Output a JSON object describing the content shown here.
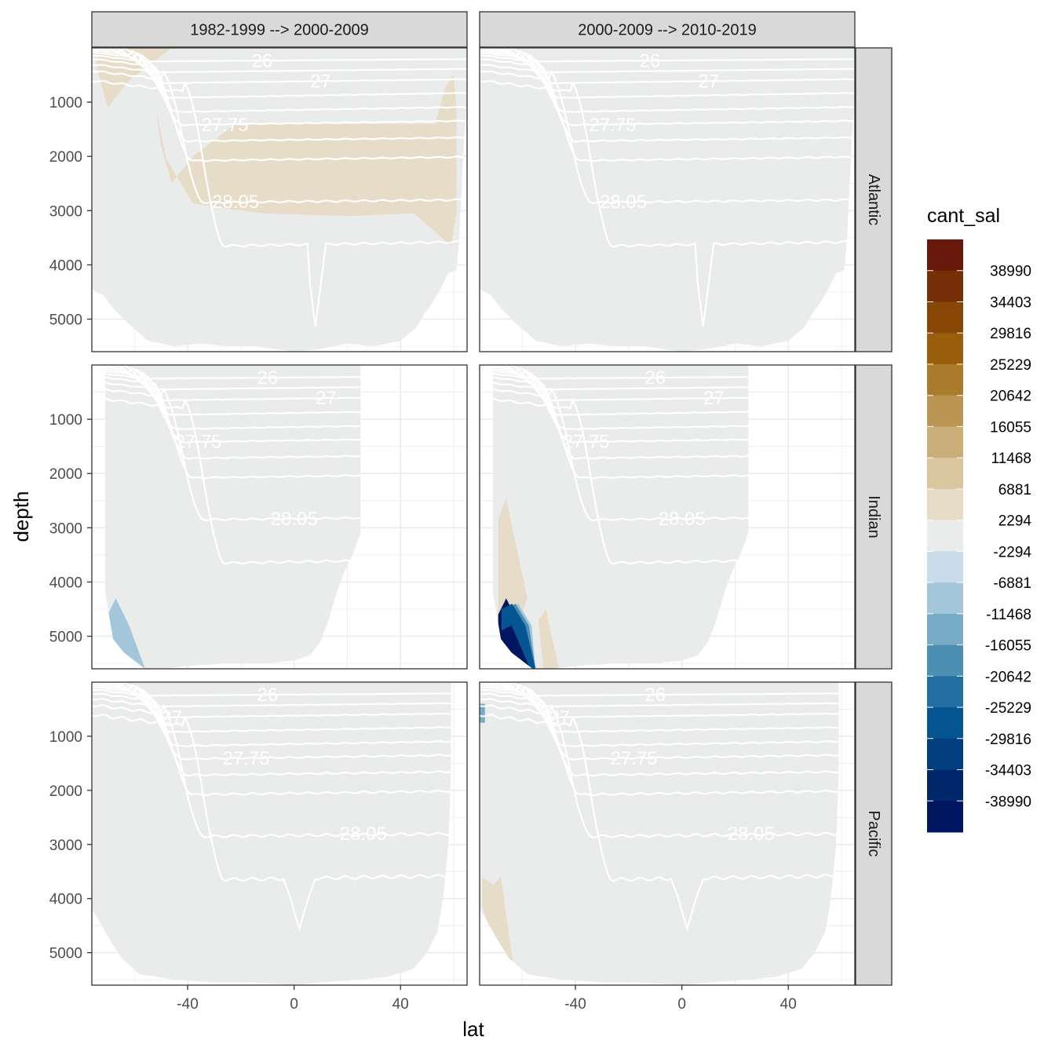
{
  "chart_data": {
    "type": "heatmap",
    "xlabel": "lat",
    "ylabel": "depth",
    "x_ticks": [
      "-40",
      "0",
      "40"
    ],
    "y_ticks": [
      "1000",
      "2000",
      "3000",
      "4000",
      "5000"
    ],
    "xlim": [
      -76,
      65
    ],
    "ylim": [
      5600,
      0
    ],
    "y_reversed": true,
    "grid": true,
    "facet_columns": [
      "1982-1999 --> 2000-2009",
      "2000-2009 --> 2010-2019"
    ],
    "facet_rows": [
      "Atlantic",
      "Indian",
      "Pacific"
    ],
    "fill_variable": "cant_sal",
    "legend": {
      "title": "cant_sal",
      "position": "right",
      "labels": [
        "38990",
        "34403",
        "29816",
        "25229",
        "20642",
        "16055",
        "11468",
        "6881",
        "2294",
        "-2294",
        "-6881",
        "-11468",
        "-16055",
        "-20642",
        "-25229",
        "-29816",
        "-34403",
        "-38990"
      ],
      "colors": [
        "#67180a",
        "#762e06",
        "#874606",
        "#985e0c",
        "#a97b2a",
        "#bb9552",
        "#c9ae78",
        "#d9c59e",
        "#e7dcc7",
        "#eaeceb",
        "#c8dde9",
        "#a3c6db",
        "#78abc6",
        "#4d8fb3",
        "#236fa1",
        "#045592",
        "#033f7f",
        "#00266c",
        "#001661"
      ]
    },
    "contour_labels": [
      "26",
      "27",
      "27.75",
      "28.05"
    ],
    "background_fill_color": "#eaeceb",
    "panels": [
      {
        "column": "1982-1999 --> 2000-2009",
        "row": "Atlantic",
        "anomalies": [
          {
            "sign": "positive",
            "level": "2294 to 6881",
            "color": "#e7dcc7",
            "lat_range": [
              -52,
              61
            ],
            "depth_range": [
              1400,
              3650
            ]
          },
          {
            "sign": "positive",
            "level": "2294 to 6881",
            "color": "#e7dcc7",
            "lat_range": [
              -76,
              -72
            ],
            "depth_range": [
              0,
              200
            ]
          }
        ]
      },
      {
        "column": "2000-2009 --> 2010-2019",
        "row": "Atlantic",
        "anomalies": []
      },
      {
        "column": "1982-1999 --> 2000-2009",
        "row": "Indian",
        "anomalies": [
          {
            "sign": "negative",
            "level": "-2294 to -11468",
            "color": "#a3c6db",
            "lat_range": [
              -70,
              -56
            ],
            "depth_range": [
              4300,
              5600
            ]
          }
        ]
      },
      {
        "column": "2000-2009 --> 2010-2019",
        "row": "Indian",
        "anomalies": [
          {
            "sign": "positive",
            "level": "2294 to 6881",
            "color": "#e7dcc7",
            "lat_range": [
              -69,
              -58
            ],
            "depth_range": [
              2450,
              4700
            ]
          },
          {
            "sign": "negative",
            "level": "down to -38990",
            "color": "#001661",
            "lat_range": [
              -69,
              -55
            ],
            "depth_range": [
              4300,
              5600
            ]
          },
          {
            "sign": "positive",
            "level": "2294 to 6881",
            "color": "#e7dcc7",
            "lat_range": [
              -54,
              -46
            ],
            "depth_range": [
              4700,
              5600
            ]
          }
        ]
      },
      {
        "column": "1982-1999 --> 2000-2009",
        "row": "Pacific",
        "anomalies": []
      },
      {
        "column": "2000-2009 --> 2010-2019",
        "row": "Pacific",
        "anomalies": [
          {
            "sign": "negative",
            "level": "-2294 to -16055",
            "color": "#78abc6",
            "lat_range": [
              -76,
              -74
            ],
            "depth_range": [
              400,
              750
            ]
          },
          {
            "sign": "positive",
            "level": "2294 to 6881",
            "color": "#e7dcc7",
            "lat_range": [
              -75,
              -63
            ],
            "depth_range": [
              3600,
              5350
            ]
          }
        ]
      }
    ]
  }
}
